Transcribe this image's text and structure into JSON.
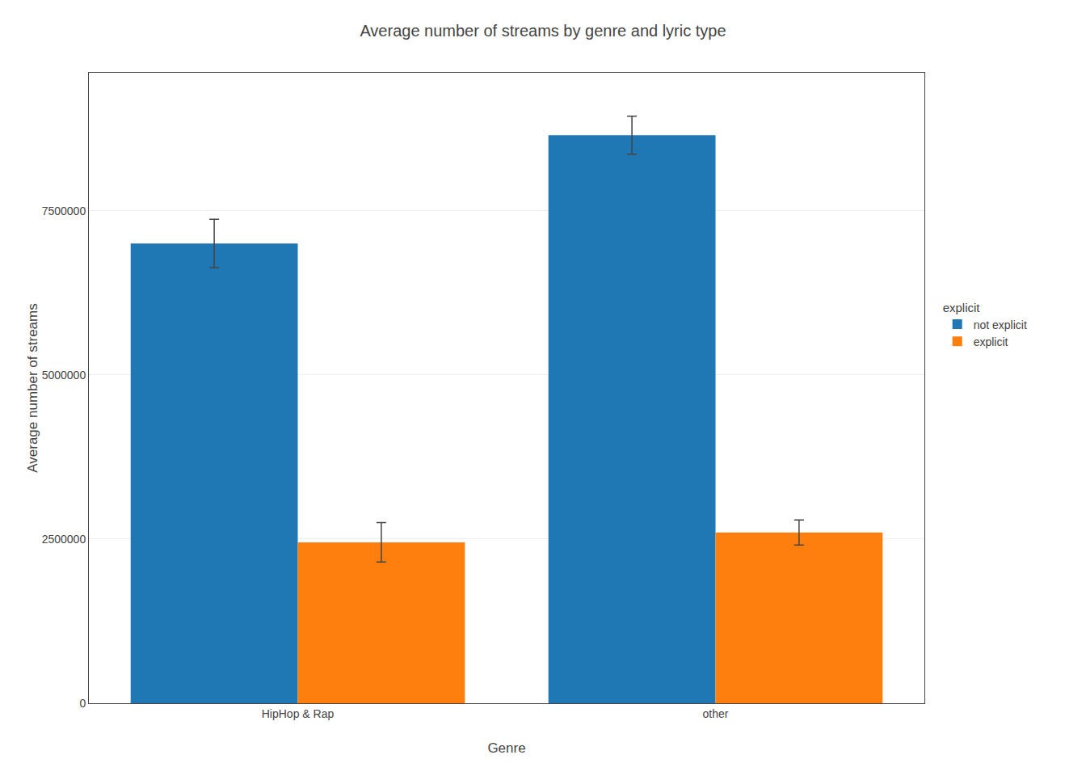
{
  "chart_data": {
    "type": "bar",
    "title": "Average number of streams by genre and lyric type",
    "xlabel": "Genre",
    "ylabel": "Average number of streams",
    "categories": [
      "HipHop & Rap",
      "other"
    ],
    "series": [
      {
        "name": "not explicit",
        "values": [
          7000000,
          8650000
        ],
        "errors": [
          370000,
          290000
        ]
      },
      {
        "name": "explicit",
        "values": [
          2450000,
          2600000
        ],
        "errors": [
          300000,
          190000
        ]
      }
    ],
    "ylim": [
      0,
      9600000
    ],
    "yticks": [
      0,
      2500000,
      5000000,
      7500000
    ],
    "grid": true,
    "legend": "right",
    "legend_title": "explicit"
  }
}
